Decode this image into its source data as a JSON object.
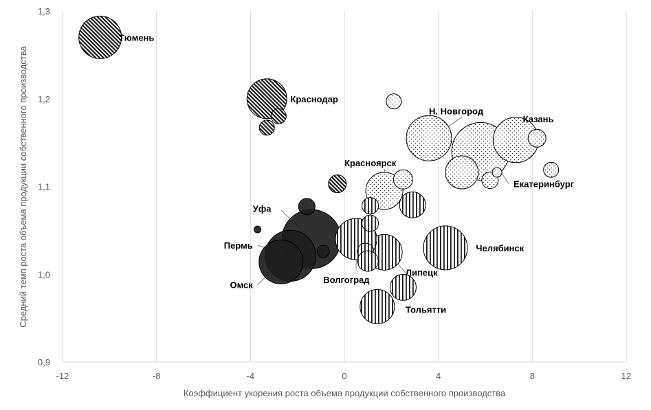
{
  "chart_data": {
    "type": "bubble",
    "title": "",
    "xlabel": "Коэффициент укорения роста объема продукции собственного производства",
    "ylabel": "Средний темп роста объема продукции собственного производства",
    "xlim": [
      -12,
      12
    ],
    "ylim": [
      0.9,
      1.3
    ],
    "x_ticks": [
      "-12",
      "-8",
      "-4",
      "0",
      "4",
      "8",
      "12"
    ],
    "y_ticks": [
      "0,9",
      "1,0",
      "1,1",
      "1,2",
      "1,3"
    ],
    "grid": "vertical",
    "groups": [
      {
        "pattern": "crosshatch",
        "points": [
          {
            "x": -10.4,
            "y": 1.27,
            "r": 31,
            "label": "Тюмень"
          },
          {
            "x": -3.3,
            "y": 1.2,
            "r": 29,
            "label": "Краснодар"
          },
          {
            "x": -2.8,
            "y": 1.18,
            "r": 11
          },
          {
            "x": -3.3,
            "y": 1.167,
            "r": 11
          },
          {
            "x": -0.3,
            "y": 1.103,
            "r": 13
          }
        ]
      },
      {
        "pattern": "dots",
        "points": [
          {
            "x": 3.6,
            "y": 1.155,
            "r": 33,
            "label": "Н. Новгород"
          },
          {
            "x": 5.8,
            "y": 1.14,
            "r": 42,
            "label": "Екатеринбург"
          },
          {
            "x": 7.3,
            "y": 1.153,
            "r": 33,
            "label": "Казань"
          },
          {
            "x": 1.7,
            "y": 1.095,
            "r": 27,
            "label": "Красноярск"
          },
          {
            "x": 2.1,
            "y": 1.197,
            "r": 11
          },
          {
            "x": 8.2,
            "y": 1.155,
            "r": 13
          },
          {
            "x": 8.8,
            "y": 1.119,
            "r": 11
          },
          {
            "x": 5.0,
            "y": 1.116,
            "r": 24
          },
          {
            "x": 6.2,
            "y": 1.107,
            "r": 12
          },
          {
            "x": 6.5,
            "y": 1.116,
            "r": 7
          },
          {
            "x": 2.5,
            "y": 1.108,
            "r": 14
          }
        ]
      },
      {
        "pattern": "solid",
        "points": [
          {
            "x": -1.4,
            "y": 1.04,
            "r": 43,
            "label": "Уфа"
          },
          {
            "x": -2.3,
            "y": 1.021,
            "r": 37,
            "label": "Пермь"
          },
          {
            "x": -2.7,
            "y": 1.014,
            "r": 32,
            "label": "Омск"
          },
          {
            "x": -1.6,
            "y": 1.077,
            "r": 12
          },
          {
            "x": -3.7,
            "y": 1.051,
            "r": 5
          },
          {
            "x": -0.9,
            "y": 1.026,
            "r": 9
          }
        ]
      },
      {
        "pattern": "vlines",
        "points": [
          {
            "x": 4.3,
            "y": 1.03,
            "r": 32,
            "label": "Челябинск"
          },
          {
            "x": 1.7,
            "y": 1.025,
            "r": 26,
            "label": "Липецк"
          },
          {
            "x": 0.5,
            "y": 1.04,
            "r": 30,
            "label": "Волгоград"
          },
          {
            "x": 1.4,
            "y": 0.963,
            "r": 25,
            "label": "Тольятти"
          },
          {
            "x": 2.9,
            "y": 1.079,
            "r": 19
          },
          {
            "x": 1.1,
            "y": 1.078,
            "r": 12
          },
          {
            "x": 1.1,
            "y": 1.058,
            "r": 12
          },
          {
            "x": 0.9,
            "y": 1.026,
            "r": 12
          },
          {
            "x": 1.0,
            "y": 1.015,
            "r": 15
          },
          {
            "x": 2.5,
            "y": 0.985,
            "r": 19
          }
        ]
      }
    ],
    "annotations": [
      {
        "text": "Тюмень",
        "tx": -9.6,
        "ty": 1.27,
        "anchor": "start"
      },
      {
        "text": "Краснодар",
        "tx": -2.3,
        "ty": 1.2,
        "anchor": "start"
      },
      {
        "text": "Н. Новгород",
        "tx": 3.6,
        "ty": 1.186,
        "anchor": "start",
        "line": [
          [
            5.0,
            1.179
          ],
          [
            3.7,
            1.155
          ]
        ]
      },
      {
        "text": "Казань",
        "tx": 7.6,
        "ty": 1.177,
        "anchor": "start",
        "line": [
          [
            7.8,
            1.171
          ],
          [
            7.3,
            1.153
          ]
        ]
      },
      {
        "text": "Красноярск",
        "tx": 0.0,
        "ty": 1.127,
        "anchor": "start",
        "line": [
          [
            1.7,
            1.12
          ],
          [
            1.8,
            1.1
          ]
        ]
      },
      {
        "text": "Екатеринбург",
        "tx": 7.2,
        "ty": 1.103,
        "anchor": "start",
        "line": [
          [
            7.0,
            1.103
          ],
          [
            6.2,
            1.135
          ]
        ]
      },
      {
        "text": "Уфа",
        "tx": -3.9,
        "ty": 1.075,
        "anchor": "start",
        "line": [
          [
            -2.7,
            1.073
          ],
          [
            -1.4,
            1.04
          ]
        ]
      },
      {
        "text": "Пермь",
        "tx": -3.9,
        "ty": 1.033,
        "anchor": "end",
        "line": [
          [
            -3.7,
            1.033
          ],
          [
            -2.3,
            1.021
          ]
        ]
      },
      {
        "text": "Омск",
        "tx": -3.9,
        "ty": 0.988,
        "anchor": "end",
        "line": [
          [
            -3.7,
            0.988
          ],
          [
            -2.7,
            1.014
          ]
        ]
      },
      {
        "text": "Волгоград",
        "tx": -0.9,
        "ty": 0.994,
        "anchor": "start",
        "line": [
          [
            0.5,
            1.005
          ],
          [
            0.5,
            1.04
          ]
        ]
      },
      {
        "text": "Липецк",
        "tx": 2.6,
        "ty": 1.002,
        "anchor": "start",
        "line": [
          [
            2.6,
            1.002
          ],
          [
            2.0,
            1.02
          ]
        ]
      },
      {
        "text": "Челябинск",
        "tx": 5.6,
        "ty": 1.03,
        "anchor": "start"
      },
      {
        "text": "Тольятти",
        "tx": 2.6,
        "ty": 0.96,
        "anchor": "start"
      }
    ]
  }
}
